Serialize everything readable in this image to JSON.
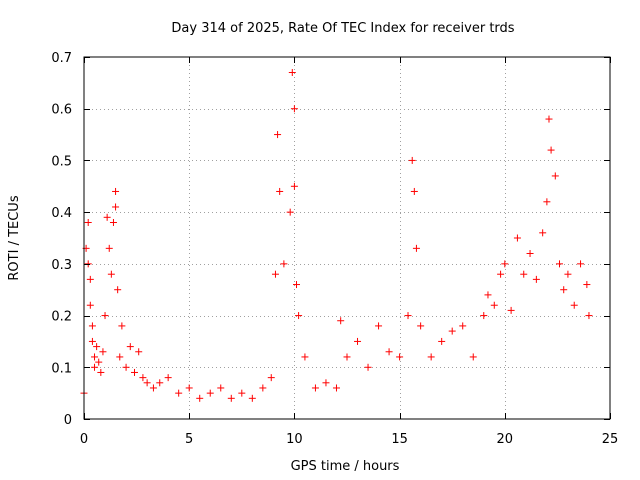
{
  "chart_data": {
    "type": "scatter",
    "title": "Day 314 of 2025, Rate Of TEC Index for receiver trds",
    "xlabel": "GPS time / hours",
    "ylabel": "ROTI / TECUs",
    "xlim": [
      0,
      25
    ],
    "ylim": [
      0,
      0.7
    ],
    "x_ticks": [
      0,
      5,
      10,
      15,
      20,
      25
    ],
    "x_tick_labels": [
      "0",
      "5",
      "10",
      "15",
      "20",
      "25"
    ],
    "y_ticks": [
      0,
      0.1,
      0.2,
      0.3,
      0.4,
      0.5,
      0.6,
      0.7
    ],
    "y_tick_labels": [
      "0",
      "0.1",
      "0.2",
      "0.3",
      "0.4",
      "0.5",
      "0.6",
      "0.7"
    ],
    "grid": true,
    "marker": "+",
    "color": "#ff0000",
    "series": [
      {
        "name": "ROTI",
        "x": [
          0.0,
          0.1,
          0.2,
          0.2,
          0.3,
          0.3,
          0.4,
          0.4,
          0.5,
          0.5,
          0.6,
          0.7,
          0.8,
          0.9,
          1.0,
          1.1,
          1.2,
          1.3,
          1.4,
          1.5,
          1.5,
          1.6,
          1.7,
          1.8,
          2.0,
          2.2,
          2.4,
          2.6,
          2.8,
          3.0,
          3.3,
          3.6,
          4.0,
          4.5,
          5.0,
          5.5,
          6.0,
          6.5,
          7.0,
          7.5,
          8.0,
          8.5,
          8.9,
          9.1,
          9.2,
          9.3,
          9.5,
          9.8,
          9.9,
          10.0,
          10.0,
          10.1,
          10.2,
          10.5,
          11.0,
          11.5,
          12.0,
          12.2,
          12.5,
          13.0,
          13.5,
          14.0,
          14.5,
          15.0,
          15.4,
          15.6,
          15.7,
          15.8,
          16.0,
          16.5,
          17.0,
          17.5,
          18.0,
          18.5,
          19.0,
          19.2,
          19.5,
          19.8,
          20.0,
          20.3,
          20.6,
          20.9,
          21.2,
          21.5,
          21.8,
          22.0,
          22.1,
          22.2,
          22.4,
          22.6,
          22.8,
          23.0,
          23.3,
          23.6,
          23.9,
          24.0
        ],
        "y": [
          0.05,
          0.33,
          0.38,
          0.3,
          0.27,
          0.22,
          0.15,
          0.18,
          0.12,
          0.1,
          0.14,
          0.11,
          0.09,
          0.13,
          0.2,
          0.39,
          0.33,
          0.28,
          0.38,
          0.44,
          0.41,
          0.25,
          0.12,
          0.18,
          0.1,
          0.14,
          0.09,
          0.13,
          0.08,
          0.07,
          0.06,
          0.07,
          0.08,
          0.05,
          0.06,
          0.04,
          0.05,
          0.06,
          0.04,
          0.05,
          0.04,
          0.06,
          0.08,
          0.28,
          0.55,
          0.44,
          0.3,
          0.4,
          0.67,
          0.6,
          0.45,
          0.26,
          0.2,
          0.12,
          0.06,
          0.07,
          0.06,
          0.19,
          0.12,
          0.15,
          0.1,
          0.18,
          0.13,
          0.12,
          0.2,
          0.5,
          0.44,
          0.33,
          0.18,
          0.12,
          0.15,
          0.17,
          0.18,
          0.12,
          0.2,
          0.24,
          0.22,
          0.28,
          0.3,
          0.21,
          0.35,
          0.28,
          0.32,
          0.27,
          0.36,
          0.42,
          0.58,
          0.52,
          0.47,
          0.3,
          0.25,
          0.28,
          0.22,
          0.3,
          0.26,
          0.2
        ]
      }
    ]
  }
}
